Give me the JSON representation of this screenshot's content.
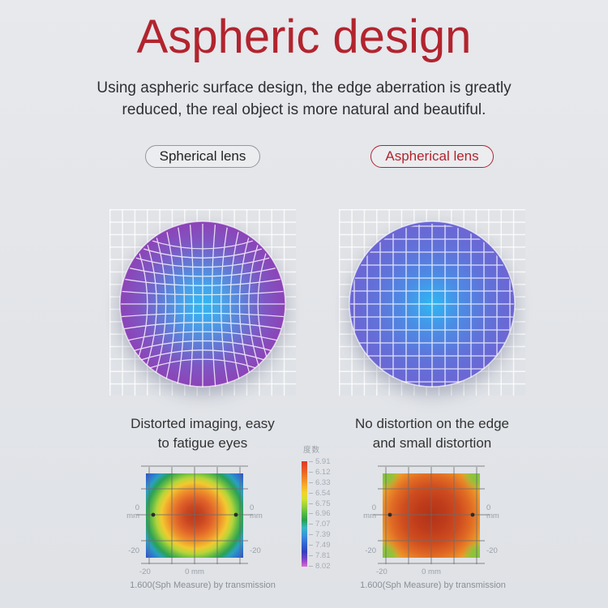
{
  "header": {
    "title": "Aspheric design",
    "subtitle_line1": "Using aspheric surface design, the edge aberration is greatly",
    "subtitle_line2": "reduced, the real object is more natural and beautiful."
  },
  "colors": {
    "accent_red": "#b2242e",
    "lens_center_glow": "#2fb7f3",
    "spherical_lens_edge": "#8d43b7",
    "aspherical_lens_edge": "#6d66d4"
  },
  "comparison": {
    "left_badge": "Spherical lens",
    "right_badge": "Aspherical lens",
    "left_caption_line1": "Distorted imaging, easy",
    "left_caption_line2": "to fatigue eyes",
    "right_caption_line1": "No distortion on the edge",
    "right_caption_line2": "and small distortion"
  },
  "legend": {
    "title": "度数",
    "ticks": [
      "5.91",
      "6.12",
      "6.33",
      "6.54",
      "6.75",
      "6.96",
      "7.07",
      "7.39",
      "7.49",
      "7.81",
      "8.02"
    ]
  },
  "axis": {
    "zero": "0",
    "unit": "mm",
    "neg20": "-20",
    "zero_mm": "0 mm"
  },
  "footer": {
    "left_caption": "1.600(Sph Measure) by transmission",
    "right_caption": "1.600(Sph Measure) by transmission"
  },
  "chart_data": [
    {
      "type": "heatmap",
      "name": "spherical-lens-distortion-grid",
      "label": "Spherical lens",
      "description": "Circular lens over a square reference grid; grid lines inside the lens bow inward toward the center (pincushion distortion), illustrating edge aberration",
      "distortion": "pincushion",
      "grid_lines_per_axis": 13,
      "color_center": "#2fb7f3",
      "color_edge": "#8d43b7"
    },
    {
      "type": "heatmap",
      "name": "aspherical-lens-distortion-grid",
      "label": "Aspherical lens",
      "description": "Circular lens over a square reference grid; grid lines stay straight (no distortion on the edge)",
      "distortion": "none",
      "grid_lines_per_axis": 13,
      "color_center": "#2fb7f3",
      "color_edge": "#6d66d4"
    },
    {
      "type": "heatmap",
      "name": "spherical-lens-power-map",
      "caption": "1.600(Sph Measure) by transmission",
      "axis_range_mm": [
        -20,
        20
      ],
      "x_tick_labels": [
        "-20",
        "0 mm"
      ],
      "y_tick_labels": [
        "0 mm",
        "-20"
      ],
      "legend_title": "度数",
      "legend_values": [
        5.91,
        6.12,
        6.33,
        6.54,
        6.75,
        6.96,
        7.07,
        7.39,
        7.49,
        7.81,
        8.02
      ],
      "pattern": "concentric rainbow rings: red center, orange/yellow/green rings, blue corners",
      "radial_profile": [
        {
          "r_mm": 0,
          "power": 5.91
        },
        {
          "r_mm": 6,
          "power": 6.12
        },
        {
          "r_mm": 10,
          "power": 6.54
        },
        {
          "r_mm": 14,
          "power": 6.96
        },
        {
          "r_mm": 18,
          "power": 7.39
        },
        {
          "r_mm": 24,
          "power": 7.81
        },
        {
          "r_mm": 28,
          "power": 8.02
        }
      ]
    },
    {
      "type": "heatmap",
      "name": "aspherical-lens-power-map",
      "caption": "1.600(Sph Measure) by transmission",
      "axis_range_mm": [
        -20,
        20
      ],
      "x_tick_labels": [
        "-20",
        "0 mm"
      ],
      "y_tick_labels": [
        "0 mm",
        "-20"
      ],
      "pattern": "broad red-orange center, yellow edges, green only at the four corners (small power variation)",
      "radial_profile": [
        {
          "r_mm": 0,
          "power": 5.91
        },
        {
          "r_mm": 10,
          "power": 6.12
        },
        {
          "r_mm": 16,
          "power": 6.33
        },
        {
          "r_mm": 20,
          "power": 6.54
        },
        {
          "r_mm": 26,
          "power": 6.75
        },
        {
          "r_mm": 28,
          "power": 6.96
        }
      ]
    }
  ]
}
